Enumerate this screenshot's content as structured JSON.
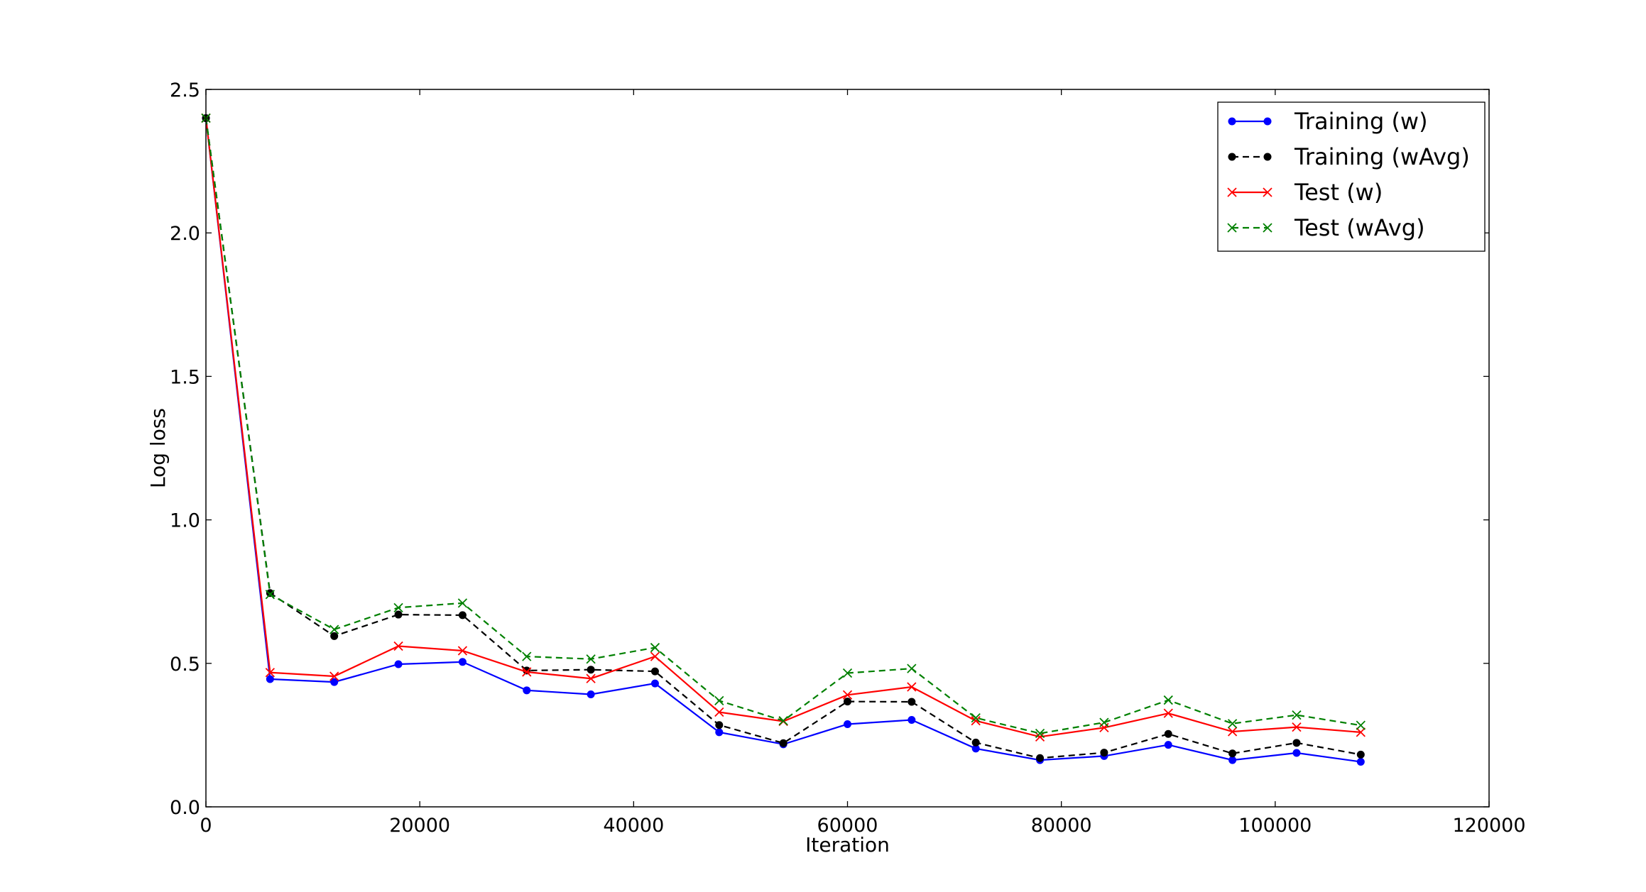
{
  "chart_data": {
    "type": "line",
    "title": "",
    "xlabel": "Iteration",
    "ylabel": "Log loss",
    "xlim": [
      0,
      120000
    ],
    "ylim": [
      0.0,
      2.5
    ],
    "xticks": [
      "0",
      "20000",
      "40000",
      "60000",
      "80000",
      "100000",
      "120000"
    ],
    "yticks": [
      "0.0",
      "0.5",
      "1.0",
      "1.5",
      "2.0",
      "2.5"
    ],
    "grid": false,
    "legend_position": "top-right",
    "x": [
      0,
      6000,
      12000,
      18000,
      24000,
      30000,
      36000,
      42000,
      48000,
      54000,
      60000,
      66000,
      72000,
      78000,
      84000,
      90000,
      96000,
      102000,
      108000
    ],
    "series": [
      {
        "name": "Training (w)",
        "color": "#0000ff",
        "linestyle": "solid",
        "marker": "dot",
        "values": [
          2.4,
          0.445,
          0.435,
          0.497,
          0.505,
          0.406,
          0.392,
          0.43,
          0.26,
          0.218,
          0.288,
          0.303,
          0.203,
          0.163,
          0.177,
          0.216,
          0.163,
          0.188,
          0.157
        ]
      },
      {
        "name": "Training (wAvg)",
        "color": "#000000",
        "linestyle": "dashed",
        "marker": "dot",
        "values": [
          2.4,
          0.745,
          0.595,
          0.67,
          0.668,
          0.475,
          0.478,
          0.472,
          0.285,
          0.222,
          0.367,
          0.366,
          0.224,
          0.17,
          0.189,
          0.254,
          0.186,
          0.223,
          0.182
        ]
      },
      {
        "name": "Test (w)",
        "color": "#ff0000",
        "linestyle": "solid",
        "marker": "x",
        "values": [
          2.4,
          0.468,
          0.455,
          0.56,
          0.544,
          0.47,
          0.447,
          0.524,
          0.33,
          0.298,
          0.39,
          0.418,
          0.3,
          0.244,
          0.276,
          0.326,
          0.262,
          0.278,
          0.26
        ]
      },
      {
        "name": "Test (wAvg)",
        "color": "#008000",
        "linestyle": "dashed",
        "marker": "x",
        "values": [
          2.4,
          0.74,
          0.618,
          0.694,
          0.71,
          0.524,
          0.515,
          0.555,
          0.37,
          0.3,
          0.466,
          0.482,
          0.31,
          0.256,
          0.294,
          0.372,
          0.29,
          0.32,
          0.284
        ]
      }
    ]
  }
}
